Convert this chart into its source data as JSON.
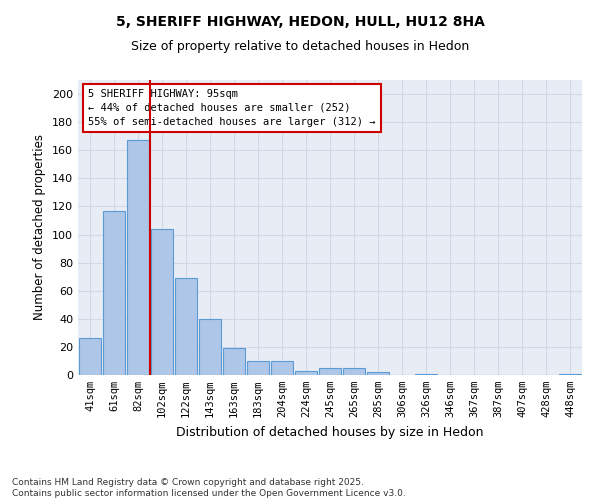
{
  "title": "5, SHERIFF HIGHWAY, HEDON, HULL, HU12 8HA",
  "subtitle": "Size of property relative to detached houses in Hedon",
  "xlabel": "Distribution of detached houses by size in Hedon",
  "ylabel": "Number of detached properties",
  "categories": [
    "41sqm",
    "61sqm",
    "82sqm",
    "102sqm",
    "122sqm",
    "143sqm",
    "163sqm",
    "183sqm",
    "204sqm",
    "224sqm",
    "245sqm",
    "265sqm",
    "285sqm",
    "306sqm",
    "326sqm",
    "346sqm",
    "367sqm",
    "387sqm",
    "407sqm",
    "428sqm",
    "448sqm"
  ],
  "values": [
    26,
    117,
    167,
    104,
    69,
    40,
    19,
    10,
    10,
    3,
    5,
    5,
    2,
    0,
    1,
    0,
    0,
    0,
    0,
    0,
    1
  ],
  "bar_color": "#aec6e8",
  "bar_edge_color": "#5b9bd5",
  "bar_edge_width": 0.8,
  "annotation_text": "5 SHERIFF HIGHWAY: 95sqm\n← 44% of detached houses are smaller (252)\n55% of semi-detached houses are larger (312) →",
  "annotation_box_color": "#ffffff",
  "annotation_box_edge_color": "#cc0000",
  "property_line_color": "#cc0000",
  "grid_color": "#d0d8e8",
  "background_color": "#e8edf5",
  "ylim": [
    0,
    210
  ],
  "yticks": [
    0,
    20,
    40,
    60,
    80,
    100,
    120,
    140,
    160,
    180,
    200
  ],
  "footer_line1": "Contains HM Land Registry data © Crown copyright and database right 2025.",
  "footer_line2": "Contains public sector information licensed under the Open Government Licence v3.0."
}
